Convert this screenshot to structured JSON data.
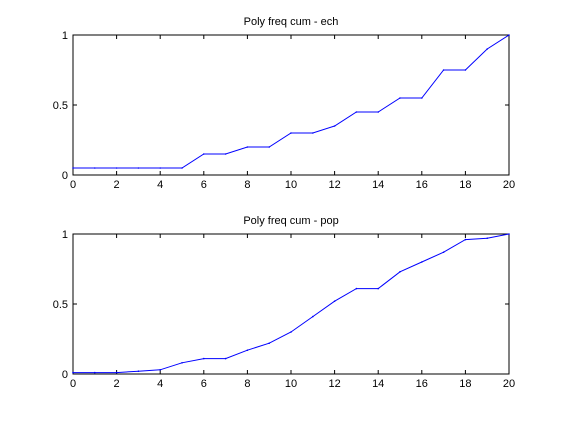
{
  "chart_data": [
    {
      "type": "line",
      "title": "Poly freq cum - ech",
      "xlabel": "",
      "ylabel": "",
      "xlim": [
        0,
        20
      ],
      "ylim": [
        0,
        1
      ],
      "x_ticks": [
        "0",
        "2",
        "4",
        "6",
        "8",
        "10",
        "12",
        "14",
        "16",
        "18",
        "20"
      ],
      "y_ticks": [
        "0",
        "0.5",
        "1"
      ],
      "grid": false,
      "legend": "none",
      "series": [
        {
          "color": "#0000ff",
          "x": [
            0,
            1,
            2,
            3,
            4,
            5,
            6,
            7,
            8,
            9,
            10,
            11,
            12,
            13,
            14,
            15,
            16,
            17,
            18,
            19,
            20
          ],
          "y": [
            0.05,
            0.05,
            0.05,
            0.05,
            0.05,
            0.05,
            0.15,
            0.15,
            0.2,
            0.2,
            0.3,
            0.3,
            0.35,
            0.45,
            0.45,
            0.55,
            0.55,
            0.75,
            0.75,
            0.9,
            1.0
          ]
        }
      ]
    },
    {
      "type": "line",
      "title": "Poly freq cum - pop",
      "xlabel": "",
      "ylabel": "",
      "xlim": [
        0,
        20
      ],
      "ylim": [
        0,
        1
      ],
      "x_ticks": [
        "0",
        "2",
        "4",
        "6",
        "8",
        "10",
        "12",
        "14",
        "16",
        "18",
        "20"
      ],
      "y_ticks": [
        "0",
        "0.5",
        "1"
      ],
      "grid": false,
      "legend": "none",
      "series": [
        {
          "color": "#0000ff",
          "x": [
            0,
            1,
            2,
            3,
            4,
            5,
            6,
            7,
            8,
            9,
            10,
            11,
            12,
            13,
            14,
            15,
            16,
            17,
            18,
            19,
            20
          ],
          "y": [
            0.01,
            0.01,
            0.01,
            0.02,
            0.03,
            0.08,
            0.11,
            0.11,
            0.17,
            0.22,
            0.3,
            0.41,
            0.52,
            0.61,
            0.61,
            0.73,
            0.8,
            0.87,
            0.96,
            0.97,
            1.0
          ]
        }
      ]
    }
  ]
}
